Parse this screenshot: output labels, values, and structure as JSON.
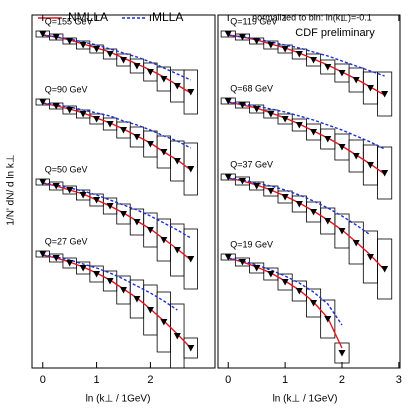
{
  "chart_data": {
    "type": "line",
    "legend": [
      {
        "name": "NMLLA",
        "color": "#e8141e",
        "dashed": false
      },
      {
        "name": "MLLA",
        "color": "#1c2fd6",
        "dashed": true
      }
    ],
    "annotations": [
      "normalized to bin: ln(k⊥)=-0.1",
      "CDF preliminary"
    ],
    "y_label": "1/N' dN/ d ln k⊥",
    "panels": [
      {
        "x_label": "ln (k⊥ / 1GeV)",
        "xlim": [
          -0.2,
          3.2
        ],
        "xticks": [
          0,
          1,
          2
        ],
        "ylim": [
          0,
          35.3
        ],
        "x": [
          0,
          0.25,
          0.5,
          0.75,
          1,
          1.25,
          1.5,
          1.75,
          2,
          2.25,
          2.5,
          2.75
        ],
        "groups": [
          {
            "label": "Q=155 GeV",
            "nmlla": [
              33.3,
              33.1,
              32.8,
              32.4,
              32.0,
              31.6,
              31.0,
              30.4,
              29.8,
              29.1,
              28.3,
              27.5
            ],
            "mlla": [
              33.3,
              33.1,
              32.9,
              32.6,
              32.3,
              31.9,
              31.5,
              31.1,
              30.6,
              30.0,
              29.4,
              28.8
            ],
            "data": [
              33.4,
              33.1,
              32.7,
              32.3,
              31.9,
              31.4,
              30.8,
              30.2,
              29.6,
              28.9,
              28.2,
              27.6
            ],
            "errors": [
              0.3,
              0.3,
              0.3,
              0.4,
              0.4,
              0.5,
              0.6,
              0.7,
              0.9,
              1.2,
              1.6,
              2.2
            ]
          },
          {
            "label": "Q=90 GeV",
            "nmlla": [
              26.5,
              26.2,
              25.9,
              25.5,
              25.0,
              24.5,
              23.9,
              23.2,
              22.5,
              21.6,
              20.8,
              19.8
            ],
            "mlla": [
              26.5,
              26.3,
              26.1,
              25.8,
              25.5,
              25.2,
              24.7,
              24.3,
              23.8,
              23.2,
              22.7,
              22.0
            ],
            "data": [
              26.6,
              26.2,
              25.8,
              25.4,
              24.9,
              24.4,
              23.8,
              23.1,
              22.4,
              21.6,
              20.7,
              19.9
            ],
            "errors": [
              0.3,
              0.3,
              0.4,
              0.4,
              0.5,
              0.6,
              0.8,
              1.0,
              1.3,
              1.6,
              2.0,
              2.6
            ]
          },
          {
            "label": "Q=50 GeV",
            "nmlla": [
              18.5,
              18.2,
              17.8,
              17.4,
              16.8,
              16.2,
              15.5,
              14.7,
              13.9,
              12.9,
              11.9,
              10.8
            ],
            "mlla": [
              18.5,
              18.3,
              18.0,
              17.7,
              17.3,
              16.8,
              16.3,
              15.8,
              15.2,
              14.5,
              13.8,
              13.0
            ],
            "data": [
              18.6,
              18.2,
              17.8,
              17.3,
              16.8,
              16.2,
              15.4,
              14.6,
              13.8,
              12.8,
              11.8,
              10.9
            ],
            "errors": [
              0.3,
              0.4,
              0.4,
              0.5,
              0.6,
              0.8,
              1.0,
              1.3,
              1.7,
              2.1,
              2.6,
              3.0
            ]
          },
          {
            "label": "Q=27 GeV",
            "nmlla": [
              11.3,
              11.0,
              10.6,
              10.1,
              9.5,
              8.8,
              7.9,
              7.0,
              5.9,
              4.7,
              3.4,
              2.0
            ],
            "mlla": [
              11.3,
              11.1,
              10.8,
              10.4,
              10.0,
              9.5,
              8.9,
              8.2,
              7.5,
              6.7,
              5.8,
              null
            ],
            "data": [
              11.4,
              11.0,
              10.5,
              10.0,
              9.4,
              8.7,
              7.8,
              6.9,
              5.8,
              4.6,
              3.2,
              2.0
            ],
            "errors": [
              0.3,
              0.4,
              0.5,
              0.6,
              0.8,
              1.0,
              1.4,
              1.9,
              2.5,
              3.0,
              3.2,
              1.0
            ]
          }
        ]
      },
      {
        "x_label": "ln (k⊥ / 1GeV)",
        "xlim": [
          -0.18,
          3.02
        ],
        "xticks": [
          0,
          1,
          2,
          3
        ],
        "ylim": [
          0,
          35.3
        ],
        "x": [
          0,
          0.25,
          0.5,
          0.75,
          1,
          1.25,
          1.5,
          1.75,
          2,
          2.25,
          2.5,
          2.75
        ],
        "groups": [
          {
            "label": "Q=119 GeV",
            "nmlla": [
              33.3,
              33.1,
              32.8,
              32.4,
              32.0,
              31.5,
              30.9,
              30.3,
              29.6,
              28.9,
              28.1,
              27.3
            ],
            "mlla": [
              33.3,
              33.1,
              32.9,
              32.6,
              32.3,
              32.0,
              31.6,
              31.2,
              30.7,
              30.2,
              29.7,
              29.2
            ],
            "data": [
              33.4,
              33.1,
              32.7,
              32.3,
              31.9,
              31.4,
              30.8,
              30.1,
              29.5,
              28.8,
              28.0,
              27.4
            ],
            "errors": [
              0.3,
              0.3,
              0.3,
              0.4,
              0.4,
              0.5,
              0.6,
              0.7,
              0.9,
              1.2,
              1.6,
              2.2
            ]
          },
          {
            "label": "Q=68 GeV",
            "nmlla": [
              26.6,
              26.3,
              26.0,
              25.5,
              25.0,
              24.4,
              23.7,
              23.0,
              22.2,
              21.3,
              20.4,
              19.4
            ],
            "mlla": [
              26.6,
              26.4,
              26.2,
              25.9,
              25.6,
              25.2,
              24.8,
              24.3,
              23.8,
              23.2,
              22.6,
              21.9
            ],
            "data": [
              26.7,
              26.3,
              25.9,
              25.4,
              24.9,
              24.3,
              23.6,
              22.9,
              22.1,
              21.2,
              20.3,
              19.5
            ],
            "errors": [
              0.3,
              0.3,
              0.4,
              0.4,
              0.5,
              0.6,
              0.8,
              1.0,
              1.3,
              1.6,
              2.0,
              2.6
            ]
          },
          {
            "label": "Q=37 GeV",
            "nmlla": [
              19.0,
              18.7,
              18.3,
              17.8,
              17.2,
              16.5,
              15.7,
              14.8,
              13.8,
              12.6,
              11.3,
              9.8
            ],
            "mlla": [
              19.0,
              18.8,
              18.5,
              18.2,
              17.8,
              17.3,
              16.7,
              16.0,
              15.2,
              14.3,
              13.3,
              null
            ],
            "data": [
              19.1,
              18.7,
              18.2,
              17.7,
              17.1,
              16.4,
              15.6,
              14.7,
              13.7,
              12.5,
              11.1,
              9.9
            ],
            "errors": [
              0.3,
              0.4,
              0.4,
              0.5,
              0.6,
              0.8,
              1.0,
              1.3,
              1.7,
              2.1,
              2.6,
              3.0
            ]
          },
          {
            "label": "Q=19 GeV",
            "nmlla": [
              11.0,
              10.6,
              10.1,
              9.5,
              8.7,
              7.8,
              6.6,
              5.0,
              2.0,
              null,
              null,
              null
            ],
            "mlla": [
              11.0,
              10.7,
              10.3,
              9.8,
              9.2,
              8.5,
              7.6,
              6.4,
              4.3,
              null,
              null,
              null
            ],
            "data": [
              11.1,
              10.6,
              10.0,
              9.4,
              8.6,
              7.7,
              6.5,
              4.9,
              1.5,
              null,
              null,
              null
            ],
            "errors": [
              0.3,
              0.4,
              0.5,
              0.6,
              0.8,
              1.0,
              1.4,
              1.9,
              1.0,
              null,
              null,
              null
            ]
          }
        ]
      }
    ]
  }
}
